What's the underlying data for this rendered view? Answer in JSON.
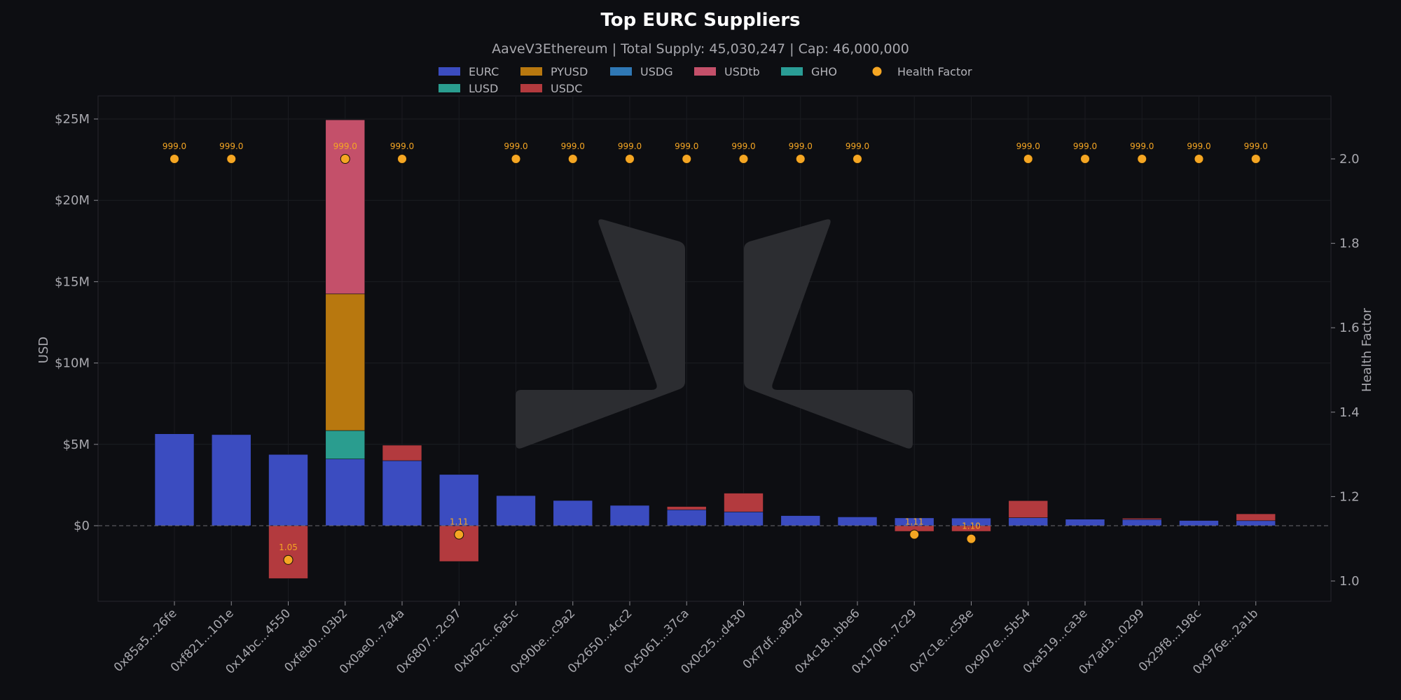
{
  "title": "Top EURC Suppliers",
  "subtitle": "AaveV3Ethereum | Total Supply: 45,030,247 | Cap: 46,000,000",
  "colors": {
    "background": "#0d0e12",
    "EURC": "#3b4cc0",
    "LUSD": "#2a9d8f",
    "PYUSD": "#b8780f",
    "USDC": "#b33a3e",
    "USDG": "#2f78b5",
    "USDtb": "#c4506a",
    "GHO": "#2a9d96",
    "health_factor": "#f5a623"
  },
  "legend": [
    {
      "name": "EURC",
      "color": "#3b4cc0",
      "kind": "bar"
    },
    {
      "name": "PYUSD",
      "color": "#b8780f",
      "kind": "bar"
    },
    {
      "name": "USDG",
      "color": "#2f78b5",
      "kind": "bar"
    },
    {
      "name": "USDtb",
      "color": "#c4506a",
      "kind": "bar"
    },
    {
      "name": "GHO",
      "color": "#2a9d96",
      "kind": "bar"
    },
    {
      "name": "Health Factor",
      "color": "#f5a623",
      "kind": "dot"
    },
    {
      "name": "LUSD",
      "color": "#2a9d8f",
      "kind": "bar"
    },
    {
      "name": "USDC",
      "color": "#b33a3e",
      "kind": "bar"
    }
  ],
  "chart_data": {
    "type": "bar",
    "stacked": true,
    "title": "Top EURC Suppliers",
    "subtitle": "AaveV3Ethereum | Total Supply: 45,030,247 | Cap: 46,000,000",
    "ylabel": "USD",
    "y2label": "Health Factor",
    "ylim": [
      -4700000,
      26000000
    ],
    "y2lim": [
      0.95,
      2.14
    ],
    "yticks": [
      0,
      5000000,
      10000000,
      15000000,
      20000000,
      25000000
    ],
    "ytick_labels": [
      "$0",
      "$5M",
      "$10M",
      "$15M",
      "$20M",
      "$25M"
    ],
    "y2ticks": [
      1.0,
      1.2,
      1.4,
      1.6,
      1.8,
      2.0
    ],
    "y2tick_labels": [
      "1.0",
      "1.2",
      "1.4",
      "1.6",
      "1.8",
      "2.0"
    ],
    "legend_position": "top-center",
    "grid": true,
    "categories": [
      "0x85a5...26fe",
      "0xf821...101e",
      "0x14bc...4550",
      "0xfeb0...03b2",
      "0x0ae0...7a4a",
      "0x6807...2c97",
      "0xb62c...6a5c",
      "0x90be...c9a2",
      "0x2650...4cc2",
      "0x5061...37ca",
      "0x0c25...d430",
      "0xf7df...a82d",
      "0x4c18...bbe6",
      "0x1706...7c29",
      "0x7c1e...c58e",
      "0x907e...5b54",
      "0xa519...ca3e",
      "0x7ad3...0299",
      "0x29f8...198c",
      "0x976e...2a1b"
    ],
    "series": [
      {
        "name": "EURC",
        "values": [
          5650000,
          5600000,
          4380000,
          4100000,
          4000000,
          3150000,
          1850000,
          1550000,
          1250000,
          980000,
          850000,
          620000,
          540000,
          480000,
          470000,
          490000,
          400000,
          380000,
          320000,
          310000
        ]
      },
      {
        "name": "LUSD",
        "values": [
          0,
          0,
          0,
          1750000,
          0,
          0,
          0,
          0,
          0,
          0,
          0,
          0,
          0,
          0,
          0,
          0,
          0,
          0,
          0,
          0
        ]
      },
      {
        "name": "PYUSD",
        "values": [
          0,
          0,
          0,
          8400000,
          0,
          0,
          0,
          0,
          0,
          0,
          0,
          0,
          0,
          0,
          0,
          0,
          0,
          0,
          0,
          0
        ]
      },
      {
        "name": "USDC",
        "values": [
          0,
          0,
          -3250000,
          0,
          950000,
          -2200000,
          0,
          0,
          0,
          200000,
          1150000,
          0,
          0,
          -350000,
          -350000,
          1050000,
          0,
          80000,
          0,
          420000
        ]
      },
      {
        "name": "USDG",
        "values": [
          0,
          0,
          0,
          0,
          0,
          0,
          0,
          0,
          0,
          0,
          0,
          0,
          0,
          0,
          0,
          0,
          0,
          0,
          0,
          0
        ]
      },
      {
        "name": "USDtb",
        "values": [
          0,
          0,
          0,
          10700000,
          0,
          0,
          0,
          0,
          0,
          0,
          0,
          0,
          0,
          0,
          0,
          0,
          0,
          0,
          0,
          0
        ]
      },
      {
        "name": "GHO",
        "values": [
          0,
          0,
          0,
          0,
          0,
          0,
          0,
          0,
          0,
          0,
          0,
          0,
          0,
          0,
          0,
          0,
          0,
          0,
          0,
          0
        ]
      }
    ],
    "health_factor": {
      "name": "Health Factor",
      "values": [
        2.0,
        2.0,
        1.05,
        2.0,
        2.0,
        1.11,
        2.0,
        2.0,
        2.0,
        2.0,
        2.0,
        2.0,
        2.0,
        1.11,
        1.1,
        2.0,
        2.0,
        2.0,
        2.0,
        2.0
      ],
      "labels": [
        "999.0",
        "999.0",
        "1.05",
        "999.0",
        "999.0",
        "1.11",
        "999.0",
        "999.0",
        "999.0",
        "999.0",
        "999.0",
        "999.0",
        "999.0",
        "1.11",
        "1.10",
        "999.0",
        "999.0",
        "999.0",
        "999.0",
        "999.0"
      ]
    }
  }
}
